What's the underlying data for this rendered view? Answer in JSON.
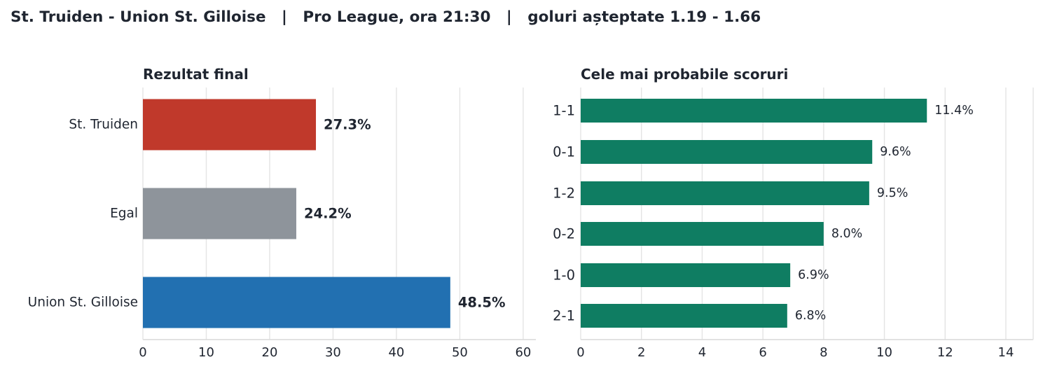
{
  "header": {
    "title": "St. Truiden - Union St. Gilloise   |   Pro League, ora 21:30   |   goluri așteptate 1.19 - 1.66"
  },
  "colors": {
    "home": "#c0392b",
    "draw": "#8e949b",
    "away": "#2270b1",
    "scores": "#0f7d62",
    "grid": "#e4e4e4",
    "axis": "#d8d8d8",
    "text": "#1f2530"
  },
  "chart_data": [
    {
      "type": "bar",
      "orientation": "horizontal",
      "title": "Rezultat final",
      "categories": [
        "St. Truiden",
        "Egal",
        "Union St. Gilloise"
      ],
      "values": [
        27.3,
        24.2,
        48.5
      ],
      "value_labels": [
        "27.3%",
        "24.2%",
        "48.5%"
      ],
      "xlim": [
        0,
        62
      ],
      "xticks": [
        0,
        10,
        20,
        30,
        40,
        50,
        60
      ],
      "grid": true
    },
    {
      "type": "bar",
      "orientation": "horizontal",
      "title": "Cele mai probabile scoruri",
      "categories": [
        "1-1",
        "0-1",
        "1-2",
        "0-2",
        "1-0",
        "2-1"
      ],
      "values": [
        11.4,
        9.6,
        9.5,
        8.0,
        6.9,
        6.8
      ],
      "value_labels": [
        "11.4%",
        "9.6%",
        "9.5%",
        "8.0%",
        "6.9%",
        "6.8%"
      ],
      "xlim": [
        0,
        14.9
      ],
      "xticks": [
        0,
        2,
        4,
        6,
        8,
        10,
        12,
        14
      ],
      "grid": true
    }
  ]
}
